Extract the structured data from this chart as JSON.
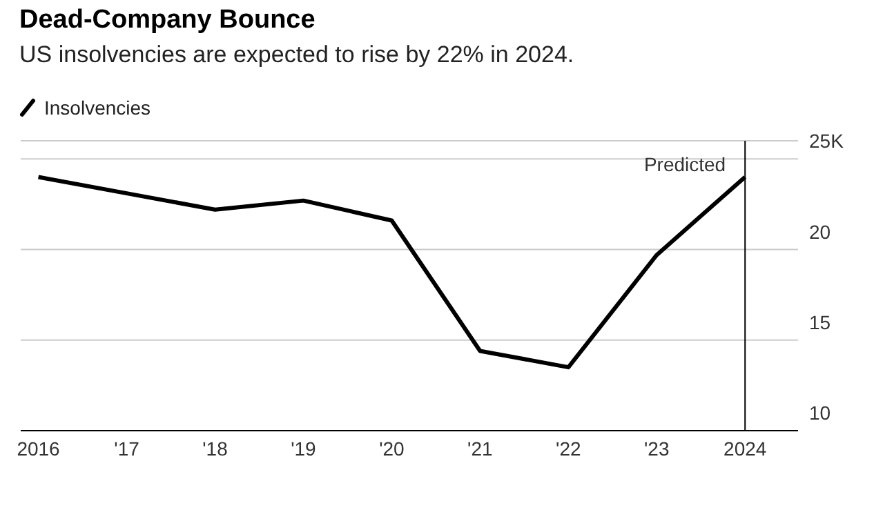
{
  "chart_data": {
    "type": "line",
    "title": "Dead-Company Bounce",
    "subtitle": "US insolvencies are expected to rise by 22% in 2024.",
    "x": [
      2016,
      2017,
      2018,
      2019,
      2020,
      2021,
      2022,
      2023,
      2024
    ],
    "series": [
      {
        "name": "Insolvencies",
        "color": "#000000",
        "values": [
          24.0,
          23.1,
          22.2,
          22.7,
          21.6,
          14.4,
          13.5,
          19.7,
          24.0
        ]
      }
    ],
    "xlim": [
      2015.8,
      2024.6
    ],
    "xticks": [
      2016,
      {
        "value": 2017,
        "label": "'17"
      },
      {
        "value": 2018,
        "label": "'18"
      },
      {
        "value": 2019,
        "label": "'19"
      },
      {
        "value": 2020,
        "label": "'20"
      },
      {
        "value": 2021,
        "label": "'21"
      },
      {
        "value": 2022,
        "label": "'22"
      },
      {
        "value": 2023,
        "label": "'23"
      },
      2024
    ],
    "ylim": [
      10,
      26
    ],
    "yticks": [
      10,
      15,
      20,
      {
        "value": 25,
        "label": "25K"
      }
    ],
    "ref_lines": [
      {
        "axis": "x",
        "value": 2024,
        "label": "Predicted",
        "color": "#000000"
      }
    ],
    "grid": "y",
    "legend": "top left",
    "marker": "none",
    "line_style": "solid"
  }
}
